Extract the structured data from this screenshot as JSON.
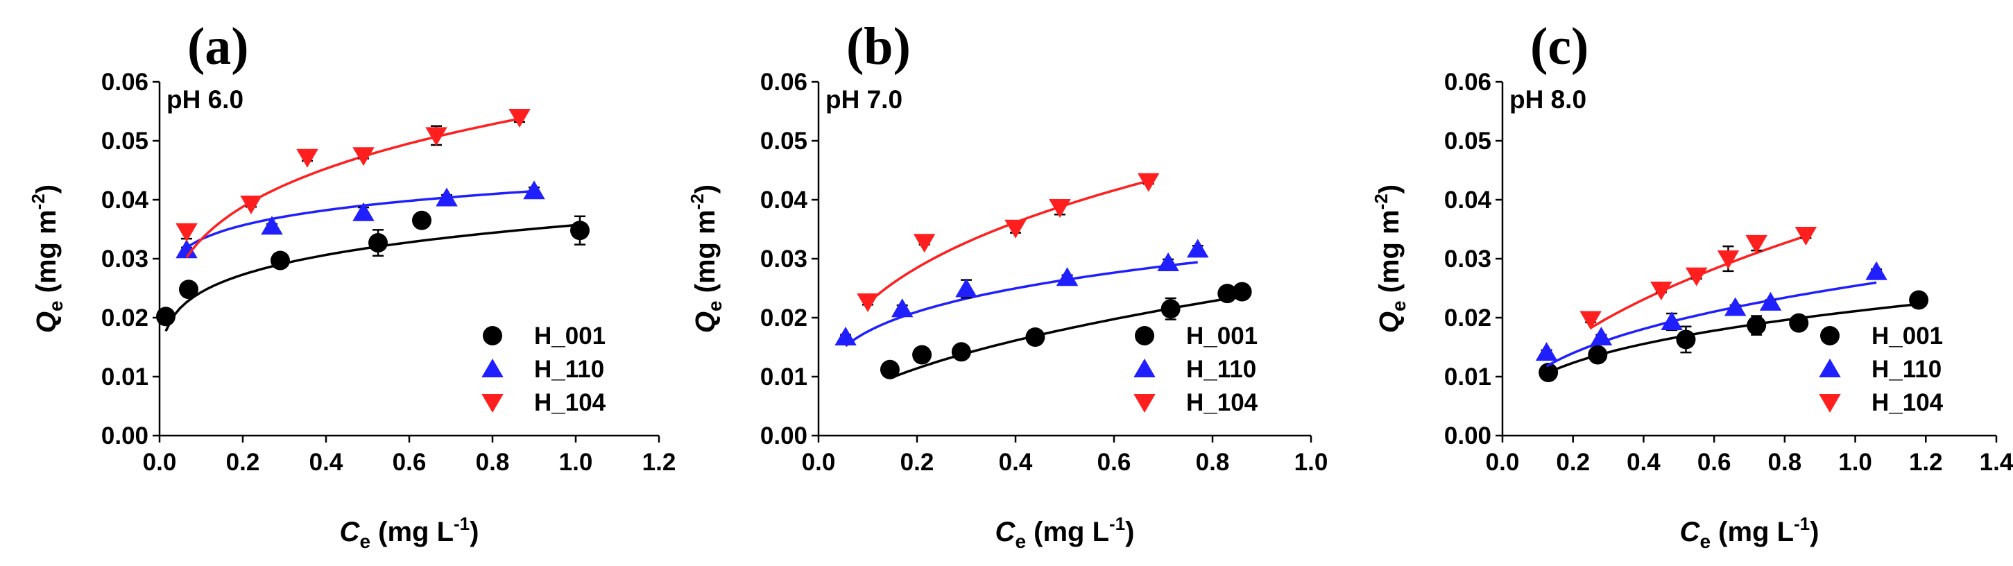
{
  "chart_data": [
    {
      "type": "scatter",
      "panel_label": "(a)",
      "annotation": "pH 6.0",
      "xlabel": {
        "main": "C",
        "sub": "e",
        "unit_pre": " (mg L",
        "sup": "-1",
        "unit_post": ")"
      },
      "ylabel": {
        "main": "Q",
        "sub": "e",
        "unit_pre": " (mg m",
        "sup": "-2",
        "unit_post": ")"
      },
      "xlim": [
        0,
        1.2
      ],
      "ylim": [
        0,
        0.06
      ],
      "xticks": [
        "0.0",
        "0.2",
        "0.4",
        "0.6",
        "0.8",
        "1.0",
        "1.2"
      ],
      "yticks": [
        "0.00",
        "0.01",
        "0.02",
        "0.03",
        "0.04",
        "0.05",
        "0.06"
      ],
      "legend_position": "bottom-right",
      "series": [
        {
          "name": "H_001",
          "marker": "circle",
          "color": "#000000",
          "x": [
            0.015,
            0.07,
            0.29,
            0.525,
            0.63,
            1.01
          ],
          "y": [
            0.0202,
            0.0248,
            0.0297,
            0.0327,
            0.0365,
            0.0348
          ],
          "err": [
            0.0005,
            0.0004,
            0.0012,
            0.0022,
            0.0003,
            0.0024
          ],
          "fit": {
            "k": 0.0357,
            "n": 6
          }
        },
        {
          "name": "H_110",
          "marker": "triangle-up",
          "color": "#1f1fff",
          "x": [
            0.065,
            0.27,
            0.49,
            0.69,
            0.9
          ],
          "y": [
            0.0315,
            0.0355,
            0.0378,
            0.0403,
            0.0415
          ],
          "err": [
            0.0004,
            0.0004,
            0.0009,
            0.0005,
            0.0006
          ],
          "fit": {
            "k": 0.0419,
            "n": 10
          }
        },
        {
          "name": "H_104",
          "marker": "triangle-down",
          "color": "#ff1f1f",
          "x": [
            0.065,
            0.22,
            0.355,
            0.49,
            0.665,
            0.865
          ],
          "y": [
            0.0346,
            0.0393,
            0.0472,
            0.0475,
            0.0509,
            0.054
          ],
          "err": [
            0.0012,
            0.0005,
            0.0006,
            0.0005,
            0.0016,
            0.0008
          ],
          "fit": {
            "k": 0.0555,
            "n": 4.5
          }
        }
      ]
    },
    {
      "type": "scatter",
      "panel_label": "(b)",
      "annotation": "pH 7.0",
      "xlabel": {
        "main": "C",
        "sub": "e",
        "unit_pre": " (mg L",
        "sup": "-1",
        "unit_post": ")"
      },
      "ylabel": {
        "main": "Q",
        "sub": "e",
        "unit_pre": " (mg m",
        "sup": "-2",
        "unit_post": ")"
      },
      "xlim": [
        0,
        1.0
      ],
      "ylim": [
        0,
        0.06
      ],
      "xticks": [
        "0.0",
        "0.2",
        "0.4",
        "0.6",
        "0.8",
        "1.0"
      ],
      "yticks": [
        "0.00",
        "0.01",
        "0.02",
        "0.03",
        "0.04",
        "0.05",
        "0.06"
      ],
      "legend_position": "bottom-right",
      "series": [
        {
          "name": "H_001",
          "marker": "circle",
          "color": "#000000",
          "x": [
            0.145,
            0.21,
            0.29,
            0.44,
            0.715,
            0.83,
            0.86
          ],
          "y": [
            0.0112,
            0.0137,
            0.0142,
            0.0167,
            0.0215,
            0.0241,
            0.0244
          ],
          "err": [
            0.0004,
            0.0003,
            0.0003,
            0.0002,
            0.0018,
            0.0008,
            0.0003
          ],
          "fit": {
            "k": 0.0255,
            "n": 2
          }
        },
        {
          "name": "H_110",
          "marker": "triangle-up",
          "color": "#1f1fff",
          "x": [
            0.055,
            0.17,
            0.3,
            0.505,
            0.71,
            0.77
          ],
          "y": [
            0.0167,
            0.0215,
            0.0249,
            0.0268,
            0.0293,
            0.0316
          ],
          "err": [
            0.0004,
            0.0006,
            0.0015,
            0.0004,
            0.0006,
            0.0006
          ],
          "fit": {
            "k": 0.0314,
            "n": 4
          }
        },
        {
          "name": "H_104",
          "marker": "triangle-down",
          "color": "#ff1f1f",
          "x": [
            0.1,
            0.215,
            0.4,
            0.49,
            0.67
          ],
          "y": [
            0.0227,
            0.0328,
            0.0352,
            0.0387,
            0.0431
          ],
          "err": [
            0.0005,
            0.0004,
            0.0008,
            0.0012,
            0.0004
          ],
          "fit": {
            "k": 0.0496,
            "n": 2.9
          }
        }
      ]
    },
    {
      "type": "scatter",
      "panel_label": "(c)",
      "annotation": "pH 8.0",
      "xlabel": {
        "main": "C",
        "sub": "e",
        "unit_pre": " (mg L",
        "sup": "-1",
        "unit_post": ")"
      },
      "ylabel": {
        "main": "Q",
        "sub": "e",
        "unit_pre": " (mg m",
        "sup": "-2",
        "unit_post": ")"
      },
      "xlim": [
        0,
        1.4
      ],
      "ylim": [
        0,
        0.06
      ],
      "xticks": [
        "0.0",
        "0.2",
        "0.4",
        "0.6",
        "0.8",
        "1.0",
        "1.2",
        "1.4"
      ],
      "yticks": [
        "0.00",
        "0.01",
        "0.02",
        "0.03",
        "0.04",
        "0.05",
        "0.06"
      ],
      "legend_position": "bottom-right",
      "series": [
        {
          "name": "H_001",
          "marker": "circle",
          "color": "#000000",
          "x": [
            0.13,
            0.27,
            0.52,
            0.72,
            0.84,
            1.18
          ],
          "y": [
            0.0107,
            0.0137,
            0.0163,
            0.0187,
            0.0191,
            0.023
          ],
          "err": [
            0.0005,
            0.0004,
            0.0022,
            0.0016,
            0.0005,
            0.0004
          ],
          "fit": {
            "k": 0.0211,
            "n": 3
          }
        },
        {
          "name": "H_110",
          "marker": "triangle-up",
          "color": "#1f1fff",
          "x": [
            0.125,
            0.28,
            0.48,
            0.66,
            0.76,
            1.06
          ],
          "y": [
            0.0141,
            0.0167,
            0.0193,
            0.0217,
            0.0226,
            0.0278
          ],
          "err": [
            0.0004,
            0.0004,
            0.0014,
            0.0004,
            0.0004,
            0.0004
          ],
          "fit": {
            "k": 0.0254,
            "n": 2.7
          }
        },
        {
          "name": "H_104",
          "marker": "triangle-down",
          "color": "#ff1f1f",
          "x": [
            0.25,
            0.45,
            0.55,
            0.64,
            0.72,
            0.86
          ],
          "y": [
            0.0197,
            0.0247,
            0.0271,
            0.03,
            0.0326,
            0.034
          ],
          "err": [
            0.0005,
            0.0004,
            0.0005,
            0.0021,
            0.0012,
            0.0005
          ],
          "fit": {
            "k": 0.0365,
            "n": 2.0
          }
        }
      ]
    }
  ]
}
